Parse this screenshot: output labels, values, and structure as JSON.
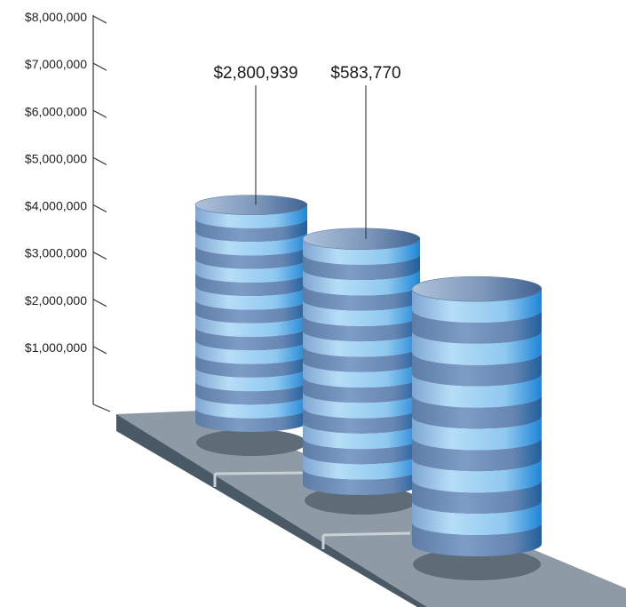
{
  "chart_data": {
    "type": "bar",
    "style": "3d-cylinder",
    "categories": [
      "",
      "",
      ""
    ],
    "values": [
      4600000,
      5200000,
      5400000
    ],
    "annotations": [
      {
        "bar_index": 0,
        "text": "$2,800,939"
      },
      {
        "bar_index": 1,
        "text": "$583,770"
      }
    ],
    "ylim": [
      0,
      8000000
    ],
    "yticks": [
      1000000,
      2000000,
      3000000,
      4000000,
      5000000,
      6000000,
      7000000,
      8000000
    ],
    "ytick_labels": [
      "$1,000,000",
      "$2,000,000",
      "$3,000,000",
      "$4,000,000",
      "$5,000,000",
      "$6,000,000",
      "$7,000,000",
      "$8,000,000"
    ],
    "title": "",
    "xlabel": "",
    "ylabel": "",
    "grid": false,
    "legend": "none"
  },
  "colors": {
    "stripe_light": "#9fd0f3",
    "stripe_dark": "#6f8fba",
    "stripe_edge": "#1a7fcc",
    "cap_top": "#8ca6c7",
    "base_top": "#8e9aa6",
    "base_side": "#4a5966",
    "shadow": "#5e6c78",
    "axis": "#333333"
  }
}
